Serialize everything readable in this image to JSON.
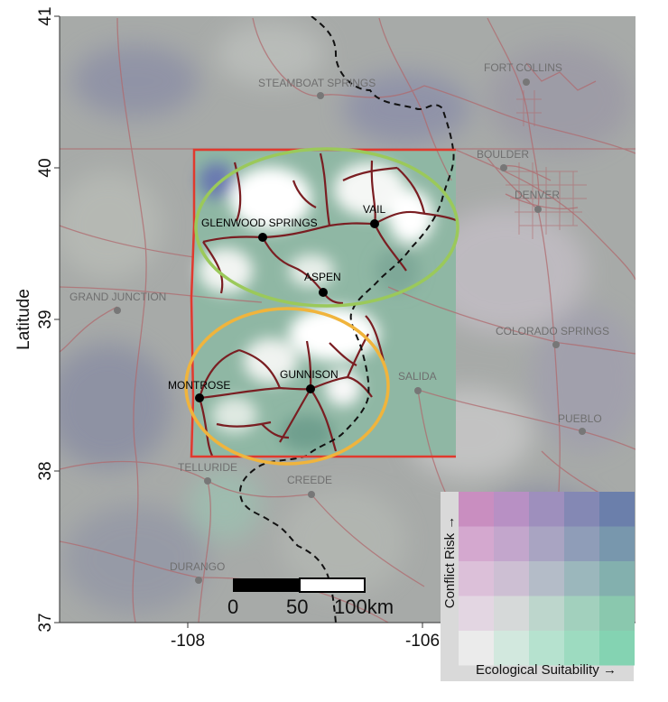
{
  "map": {
    "axes": {
      "ylabel": "Latitude",
      "y_ticks": [
        "41",
        "40",
        "39",
        "38",
        "37"
      ],
      "x_ticks": [
        "-108",
        "-106"
      ]
    },
    "study_area_color": "#e03a2e",
    "cities_background": [
      {
        "name": "STEAMBOAT SPRINGS"
      },
      {
        "name": "FORT COLLINS"
      },
      {
        "name": "BOULDER"
      },
      {
        "name": "DENVER"
      },
      {
        "name": "GRAND JUNCTION"
      },
      {
        "name": "COLORADO SPRINGS"
      },
      {
        "name": "SALIDA"
      },
      {
        "name": "PUEBLO"
      },
      {
        "name": "TELLURIDE"
      },
      {
        "name": "CREEDE"
      },
      {
        "name": "DURANGO"
      }
    ],
    "cities_focus": [
      {
        "name": "GLENWOOD SPRINGS"
      },
      {
        "name": "VAIL"
      },
      {
        "name": "ASPEN"
      },
      {
        "name": "MONTROSE"
      },
      {
        "name": "GUNNISON"
      }
    ],
    "clusters": [
      {
        "name": "north",
        "color": "#9bc95a"
      },
      {
        "name": "south",
        "color": "#f0b43c"
      }
    ],
    "scale_bar": {
      "labels": [
        "0",
        "50",
        "100km"
      ]
    },
    "legend": {
      "y_label": "Conflict Risk →",
      "x_label": "Ecological Suitability →",
      "grid": [
        [
          "#c98ec0",
          "#b890c4",
          "#9e8fbd",
          "#8488b4",
          "#6b7fab"
        ],
        [
          "#d4a8cf",
          "#c3a6cc",
          "#a9a4c2",
          "#8f9db8",
          "#7897ad"
        ],
        [
          "#dcc0d9",
          "#cdbfd3",
          "#b4bcc8",
          "#9bb7bc",
          "#83b0ae"
        ],
        [
          "#e3d6e2",
          "#d6d9d9",
          "#bdd6cc",
          "#a2d0bd",
          "#8ac8ae"
        ],
        [
          "#ebebeb",
          "#d2e8de",
          "#b6e2cf",
          "#9ddbc0",
          "#84d3b2"
        ]
      ]
    }
  }
}
